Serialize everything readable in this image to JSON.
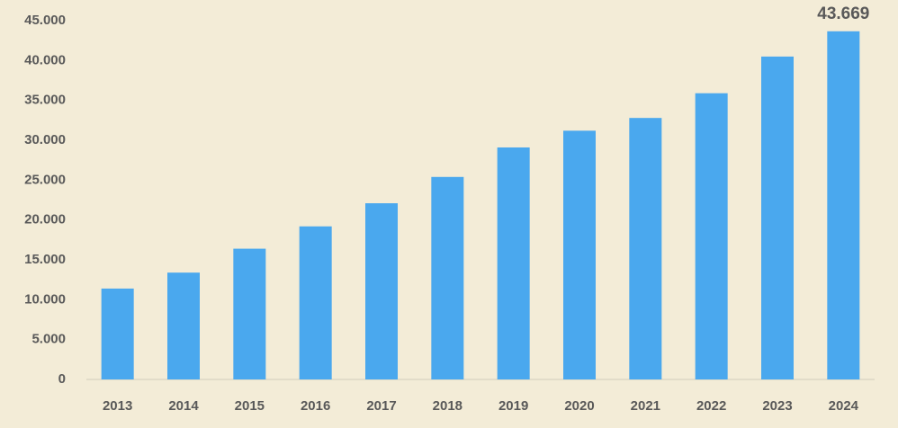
{
  "chart_data": {
    "type": "bar",
    "categories": [
      "2013",
      "2014",
      "2015",
      "2016",
      "2017",
      "2018",
      "2019",
      "2020",
      "2021",
      "2022",
      "2023",
      "2024"
    ],
    "values": [
      11400,
      13400,
      16400,
      19200,
      22100,
      25400,
      29100,
      31200,
      32800,
      35900,
      40500,
      43669
    ],
    "value_labels": [
      null,
      null,
      null,
      null,
      null,
      null,
      null,
      null,
      null,
      null,
      null,
      "43.669"
    ],
    "color": "#4aa8ee",
    "ylim": [
      0,
      45000
    ],
    "yticks": [
      0,
      {
        "value": 5000,
        "label": "5.000"
      },
      {
        "value": 10000,
        "label": "10.000"
      },
      {
        "value": 15000,
        "label": "15.000"
      },
      {
        "value": 20000,
        "label": "20.000"
      },
      {
        "value": 25000,
        "label": "25.000"
      },
      {
        "value": 30000,
        "label": "30.000"
      },
      {
        "value": 35000,
        "label": "35.000"
      },
      {
        "value": 40000,
        "label": "40.000"
      },
      {
        "value": 45000,
        "label": "45.000"
      }
    ],
    "grid": false
  }
}
